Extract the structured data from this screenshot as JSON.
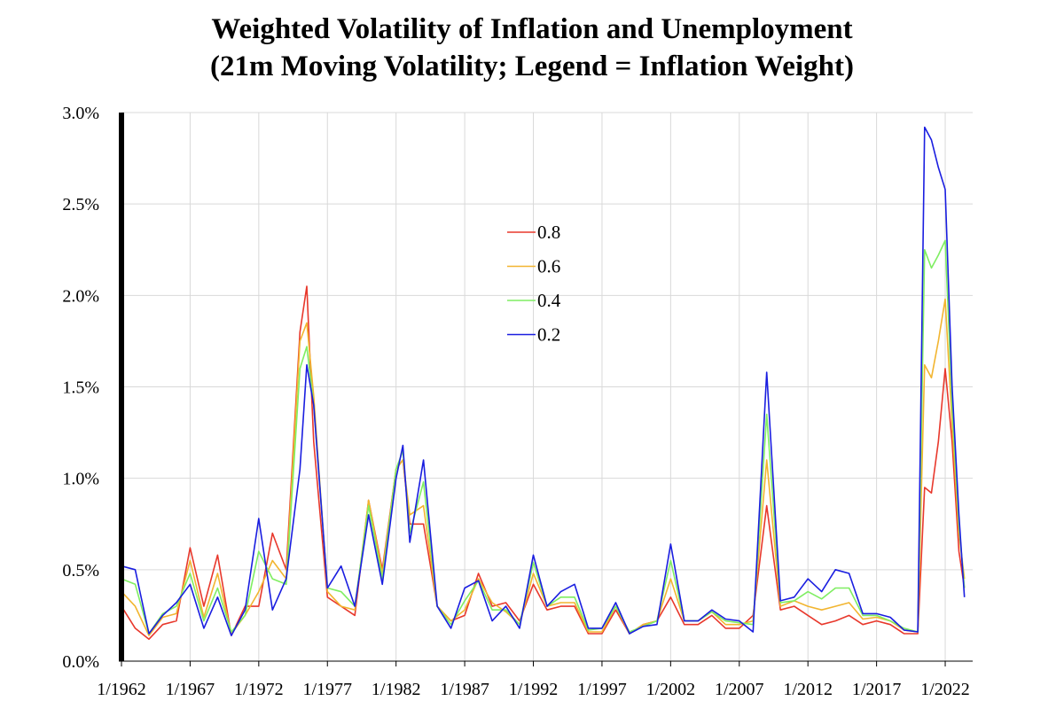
{
  "chart_data": {
    "type": "line",
    "title": "Weighted Volatility of Inflation and Unemployment",
    "subtitle": "(21m Moving Volatility; Legend = Inflation Weight)",
    "xlabel": "",
    "ylabel": "",
    "xlim": [
      1962.0,
      2024.0
    ],
    "ylim": [
      0,
      3.0
    ],
    "grid": true,
    "legend_position": "center-top",
    "yticks": [
      {
        "value": 0.0,
        "label": "0.0%"
      },
      {
        "value": 0.5,
        "label": "0.5%"
      },
      {
        "value": 1.0,
        "label": "1.0%"
      },
      {
        "value": 1.5,
        "label": "1.5%"
      },
      {
        "value": 2.0,
        "label": "2.0%"
      },
      {
        "value": 2.5,
        "label": "2.5%"
      },
      {
        "value": 3.0,
        "label": "3.0%"
      }
    ],
    "xticks": [
      {
        "value": 1962,
        "label": "1/1962"
      },
      {
        "value": 1967,
        "label": "1/1967"
      },
      {
        "value": 1972,
        "label": "1/1972"
      },
      {
        "value": 1977,
        "label": "1/1977"
      },
      {
        "value": 1982,
        "label": "1/1982"
      },
      {
        "value": 1987,
        "label": "1/1987"
      },
      {
        "value": 1992,
        "label": "1/1992"
      },
      {
        "value": 1997,
        "label": "1/1997"
      },
      {
        "value": 2002,
        "label": "1/2002"
      },
      {
        "value": 2007,
        "label": "1/2007"
      },
      {
        "value": 2012,
        "label": "1/2012"
      },
      {
        "value": 2017,
        "label": "1/2017"
      },
      {
        "value": 2022,
        "label": "1/2022"
      }
    ],
    "x": [
      1962.0,
      1963.0,
      1964.0,
      1965.0,
      1966.0,
      1967.0,
      1968.0,
      1969.0,
      1970.0,
      1971.0,
      1972.0,
      1973.0,
      1974.0,
      1975.0,
      1975.5,
      1976.0,
      1977.0,
      1978.0,
      1979.0,
      1980.0,
      1981.0,
      1982.0,
      1982.5,
      1983.0,
      1984.0,
      1985.0,
      1986.0,
      1987.0,
      1988.0,
      1989.0,
      1990.0,
      1991.0,
      1992.0,
      1993.0,
      1994.0,
      1995.0,
      1996.0,
      1997.0,
      1998.0,
      1999.0,
      2000.0,
      2001.0,
      2002.0,
      2003.0,
      2004.0,
      2005.0,
      2006.0,
      2007.0,
      2008.0,
      2009.0,
      2010.0,
      2011.0,
      2012.0,
      2013.0,
      2014.0,
      2015.0,
      2016.0,
      2017.0,
      2018.0,
      2019.0,
      2020.0,
      2020.5,
      2021.0,
      2021.5,
      2022.0,
      2022.5,
      2023.0,
      2023.4
    ],
    "series": [
      {
        "name": "0.8",
        "color": "#e8382c",
        "values": [
          0.3,
          0.18,
          0.12,
          0.2,
          0.22,
          0.62,
          0.3,
          0.58,
          0.14,
          0.3,
          0.3,
          0.7,
          0.5,
          1.8,
          2.05,
          1.2,
          0.35,
          0.3,
          0.25,
          0.88,
          0.5,
          1.05,
          1.1,
          0.75,
          0.75,
          0.3,
          0.22,
          0.25,
          0.48,
          0.3,
          0.32,
          0.22,
          0.42,
          0.28,
          0.3,
          0.3,
          0.15,
          0.15,
          0.28,
          0.15,
          0.2,
          0.22,
          0.35,
          0.2,
          0.2,
          0.25,
          0.18,
          0.18,
          0.25,
          0.85,
          0.28,
          0.3,
          0.25,
          0.2,
          0.22,
          0.25,
          0.2,
          0.22,
          0.2,
          0.15,
          0.15,
          0.95,
          0.92,
          1.2,
          1.6,
          1.2,
          0.6,
          0.4
        ]
      },
      {
        "name": "0.6",
        "color": "#f2b530",
        "values": [
          0.38,
          0.3,
          0.14,
          0.24,
          0.26,
          0.55,
          0.24,
          0.48,
          0.15,
          0.25,
          0.38,
          0.55,
          0.45,
          1.75,
          1.85,
          1.45,
          0.38,
          0.3,
          0.28,
          0.88,
          0.48,
          1.05,
          1.1,
          0.8,
          0.85,
          0.3,
          0.22,
          0.28,
          0.45,
          0.32,
          0.27,
          0.2,
          0.48,
          0.3,
          0.32,
          0.32,
          0.16,
          0.16,
          0.3,
          0.15,
          0.2,
          0.22,
          0.45,
          0.22,
          0.22,
          0.27,
          0.2,
          0.2,
          0.22,
          1.1,
          0.3,
          0.33,
          0.3,
          0.28,
          0.3,
          0.32,
          0.23,
          0.24,
          0.22,
          0.17,
          0.16,
          1.62,
          1.55,
          1.75,
          1.98,
          1.3,
          0.7,
          0.45
        ]
      },
      {
        "name": "0.4",
        "color": "#7fee62",
        "values": [
          0.45,
          0.42,
          0.15,
          0.26,
          0.3,
          0.48,
          0.22,
          0.4,
          0.16,
          0.25,
          0.6,
          0.45,
          0.42,
          1.6,
          1.72,
          1.4,
          0.4,
          0.38,
          0.3,
          0.85,
          0.45,
          1.05,
          1.15,
          0.7,
          0.98,
          0.3,
          0.2,
          0.33,
          0.44,
          0.28,
          0.28,
          0.2,
          0.54,
          0.3,
          0.35,
          0.35,
          0.17,
          0.18,
          0.3,
          0.16,
          0.19,
          0.22,
          0.55,
          0.22,
          0.22,
          0.27,
          0.22,
          0.21,
          0.2,
          1.35,
          0.32,
          0.33,
          0.38,
          0.34,
          0.4,
          0.4,
          0.25,
          0.25,
          0.22,
          0.18,
          0.16,
          2.25,
          2.15,
          2.22,
          2.3,
          1.4,
          0.75,
          0.4
        ]
      },
      {
        "name": "0.2",
        "color": "#1a1ee0",
        "values": [
          0.52,
          0.5,
          0.15,
          0.25,
          0.32,
          0.42,
          0.18,
          0.35,
          0.14,
          0.28,
          0.78,
          0.28,
          0.45,
          1.05,
          1.62,
          1.4,
          0.4,
          0.52,
          0.3,
          0.8,
          0.42,
          1.0,
          1.18,
          0.65,
          1.1,
          0.3,
          0.18,
          0.4,
          0.44,
          0.22,
          0.3,
          0.18,
          0.58,
          0.3,
          0.38,
          0.42,
          0.18,
          0.18,
          0.32,
          0.15,
          0.19,
          0.2,
          0.64,
          0.22,
          0.22,
          0.28,
          0.23,
          0.22,
          0.16,
          1.58,
          0.33,
          0.35,
          0.45,
          0.38,
          0.5,
          0.48,
          0.26,
          0.26,
          0.24,
          0.17,
          0.16,
          2.92,
          2.85,
          2.7,
          2.58,
          1.5,
          0.8,
          0.35
        ]
      }
    ]
  }
}
